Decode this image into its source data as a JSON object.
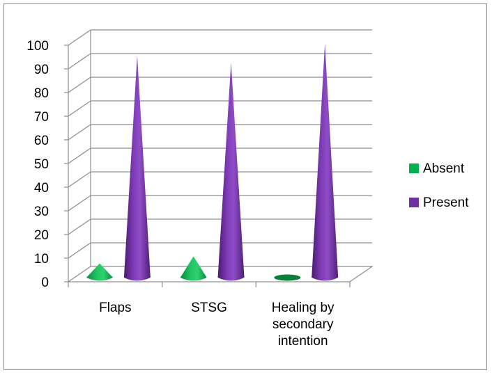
{
  "chart_data": {
    "type": "bar",
    "categories": [
      "Flaps",
      "STSG",
      "Healing by secondary intention"
    ],
    "series": [
      {
        "name": "Absent",
        "color": "#00b050",
        "values": [
          6,
          9,
          1
        ]
      },
      {
        "name": "Present",
        "color": "#7030a0",
        "values": [
          94,
          91,
          99
        ]
      }
    ],
    "ylim": [
      0,
      100
    ],
    "yticks": [
      0,
      10,
      20,
      30,
      40,
      50,
      60,
      70,
      80,
      90,
      100
    ],
    "grid": true,
    "legend": "right",
    "bar_shape": "cone-3d"
  }
}
